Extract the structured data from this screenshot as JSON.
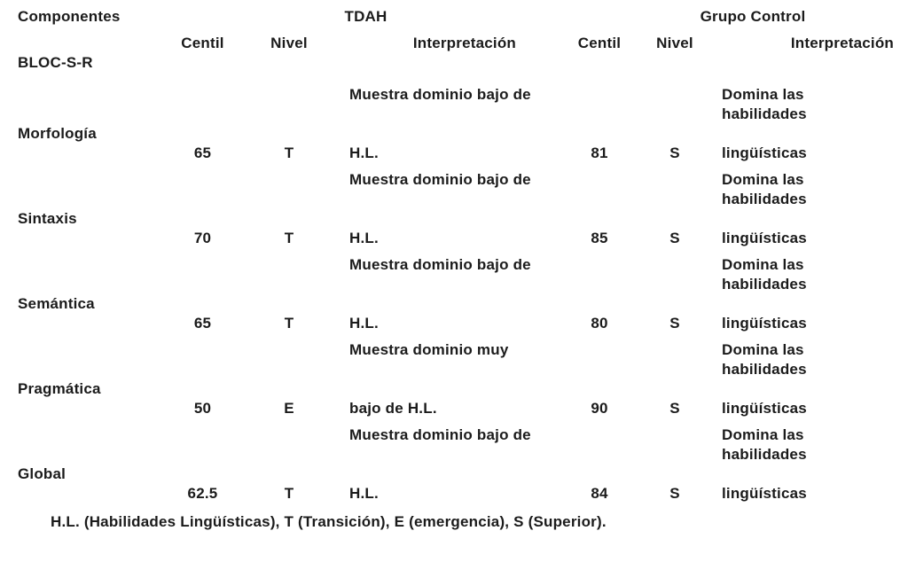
{
  "table": {
    "header": {
      "components": "Componentes",
      "tdah_group": "TDAH",
      "control_group": "Grupo Control"
    },
    "subheader": {
      "centil": "Centil",
      "nivel": "Nivel",
      "interpretacion": "Interpretación"
    },
    "rows": [
      {
        "component": "BLOC-S-R"
      },
      {
        "component": "Morfología",
        "tdah": {
          "centil": "65",
          "nivel": "T",
          "interp_line1": "Muestra dominio bajo de",
          "interp_line2": "H.L."
        },
        "control": {
          "centil": "81",
          "nivel": "S",
          "interp_line1": "Domina las",
          "interp_line2": "habilidades",
          "interp_line3": "lingüísticas"
        }
      },
      {
        "component": "Sintaxis",
        "tdah": {
          "centil": "70",
          "nivel": "T",
          "interp_line1": "Muestra dominio bajo de",
          "interp_line2": "H.L."
        },
        "control": {
          "centil": "85",
          "nivel": "S",
          "interp_line1": "Domina las",
          "interp_line2": "habilidades",
          "interp_line3": "lingüísticas"
        }
      },
      {
        "component": "Semántica",
        "tdah": {
          "centil": "65",
          "nivel": "T",
          "interp_line1": "Muestra dominio bajo de",
          "interp_line2": "H.L."
        },
        "control": {
          "centil": "80",
          "nivel": "S",
          "interp_line1": "Domina las",
          "interp_line2": "habilidades",
          "interp_line3": "lingüísticas"
        }
      },
      {
        "component": "Pragmática",
        "tdah": {
          "centil": "50",
          "nivel": "E",
          "interp_line1": "Muestra dominio muy",
          "interp_line2": "bajo de H.L."
        },
        "control": {
          "centil": "90",
          "nivel": "S",
          "interp_line1": "Domina las",
          "interp_line2": "habilidades",
          "interp_line3": "lingüísticas"
        }
      },
      {
        "component": "Global",
        "tdah": {
          "centil": "62.5",
          "nivel": "T",
          "interp_line1": "Muestra dominio bajo de",
          "interp_line2": "H.L."
        },
        "control": {
          "centil": "84",
          "nivel": "S",
          "interp_line1": "Domina las",
          "interp_line2": "habilidades",
          "interp_line3": "lingüísticas"
        }
      }
    ],
    "footnote": "H.L. (Habilidades Lingüísticas), T (Transición), E (emergencia), S (Superior)."
  }
}
